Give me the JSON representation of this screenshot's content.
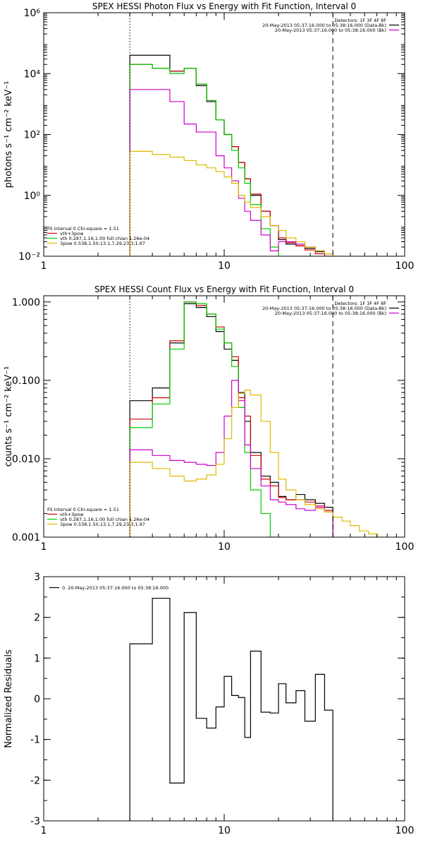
{
  "chart_data": [
    {
      "type": "line",
      "title": "SPEX HESSI Photon Flux vs Energy with Fit Function, Interval 0",
      "ylabel": "photons s⁻¹ cm⁻² keV⁻¹",
      "xlabel": "",
      "xscale": "log",
      "yscale": "log",
      "xlim": [
        1,
        100
      ],
      "ylim": [
        0.01,
        1000000
      ],
      "xticks": [
        {
          "v": 1,
          "label": "1"
        },
        {
          "v": 10,
          "label": "10"
        },
        {
          "v": 100,
          "label": "100"
        }
      ],
      "yticks": [
        {
          "v": 1000000,
          "label": "10⁶"
        },
        {
          "v": 10000,
          "label": "10⁴"
        },
        {
          "v": 100,
          "label": "10²"
        },
        {
          "v": 1,
          "label": "10⁰"
        },
        {
          "v": 0.01,
          "label": "10⁻²"
        }
      ],
      "vlines": [
        {
          "x": 3,
          "style": "dotted"
        },
        {
          "x": 40,
          "style": "dashed"
        }
      ],
      "legend_tr": {
        "title": "Detectors: 1F 3F 4F 8F",
        "entries": [
          {
            "label": "20-May-2013 05:37:16.000 to 05:38:16.000 (Data-Bk)",
            "color": "#000000"
          },
          {
            "label": "20-May-2013 05:37:16.000 to 05:38:16.000 (Bk)",
            "color": "#cc00cc"
          }
        ]
      },
      "legend_bl": {
        "title": "Fit Interval 0   Chi-square = 1.51",
        "entries": [
          {
            "label": "vth+3pow",
            "color": "#cc0000"
          },
          {
            "label": "vth 0.287,1.16,1.00  full chian 1.26e-04",
            "color": "#00cc00"
          },
          {
            "label": "3pow 0.538,1.50,13.1,7.29,23.3,1.97",
            "color": "#ddbb00"
          }
        ]
      },
      "series": [
        {
          "color": "#000000",
          "edges": [
            3,
            4,
            5,
            6,
            7,
            8,
            9,
            10,
            11,
            12,
            13,
            14,
            16,
            18,
            20,
            22,
            25,
            28,
            32,
            36,
            40
          ],
          "values": [
            40000,
            40000,
            12000,
            15000,
            4000,
            1200,
            300,
            100,
            40,
            12,
            3.5,
            1.0,
            0.3,
            0.1,
            0.035,
            0.025,
            0.022,
            0.018,
            0.014,
            0.012
          ]
        },
        {
          "color": "#cc0000",
          "edges": [
            3,
            4,
            5,
            6,
            7,
            8,
            9,
            10,
            11,
            12,
            13,
            14,
            16,
            18,
            20,
            22,
            25,
            28,
            32,
            36,
            40
          ],
          "values": [
            20000,
            15000,
            12000,
            15000,
            4500,
            1300,
            300,
            100,
            40,
            12,
            3.5,
            1.1,
            0.3,
            0.1,
            0.04,
            0.028,
            0.022,
            0.016,
            0.012,
            0.01
          ]
        },
        {
          "color": "#00cc00",
          "edges": [
            3,
            4,
            5,
            6,
            7,
            8,
            9,
            10,
            11,
            12,
            13,
            14,
            16,
            18,
            20,
            22
          ],
          "values": [
            20000,
            15000,
            10000,
            15000,
            4500,
            1300,
            300,
            100,
            30,
            8,
            2.5,
            0.5,
            0.08,
            0.02,
            0.008
          ]
        },
        {
          "color": "#cc00cc",
          "edges": [
            3,
            4,
            5,
            6,
            7,
            8,
            9,
            10,
            11,
            12,
            13,
            14,
            16,
            18,
            20,
            22,
            25,
            28,
            32,
            36,
            40
          ],
          "values": [
            3000,
            3000,
            1200,
            220,
            120,
            120,
            20,
            8,
            3,
            0.8,
            0.3,
            0.15,
            0.05,
            0.015,
            0.03,
            0.03,
            0.025,
            0.02,
            0.015,
            0.012
          ]
        },
        {
          "color": "#ddbb00",
          "edges": [
            3,
            4,
            5,
            6,
            7,
            8,
            9,
            10,
            11,
            12,
            13,
            14,
            16,
            18,
            20,
            22,
            25,
            28,
            32,
            36,
            40,
            45,
            50,
            56
          ],
          "values": [
            28,
            22,
            18,
            14,
            10,
            8,
            6,
            4,
            2.5,
            1.0,
            0.6,
            0.4,
            0.2,
            0.1,
            0.07,
            0.04,
            0.03,
            0.02,
            0.015,
            0.012,
            0.01,
            0.008,
            0.006
          ]
        }
      ]
    },
    {
      "type": "line",
      "title": "SPEX HESSI Count Flux vs Energy with Fit Function, Interval 0",
      "ylabel": "counts s⁻¹ cm⁻² keV⁻¹",
      "xlabel": "",
      "xscale": "log",
      "yscale": "log",
      "xlim": [
        1,
        100
      ],
      "ylim": [
        0.001,
        1.2
      ],
      "xticks": [
        {
          "v": 1,
          "label": "1"
        },
        {
          "v": 10,
          "label": "10"
        },
        {
          "v": 100,
          "label": "100"
        }
      ],
      "yticks": [
        {
          "v": 1.0,
          "label": "1.000"
        },
        {
          "v": 0.1,
          "label": "0.100"
        },
        {
          "v": 0.01,
          "label": "0.010"
        },
        {
          "v": 0.001,
          "label": "0.001"
        }
      ],
      "vlines": [
        {
          "x": 3,
          "style": "dotted"
        },
        {
          "x": 40,
          "style": "dashed"
        }
      ],
      "legend_tr": {
        "title": "Detectors: 1F 3F 4F 8F",
        "entries": [
          {
            "label": "20-May-2013 05:37:16.000 to 05:38:16.000 (Data-Bk)",
            "color": "#000000"
          },
          {
            "label": "20-May-2013 05:37:16.000 to 05:38:16.000 (Bk)",
            "color": "#cc00cc"
          }
        ]
      },
      "legend_bl": {
        "title": "Fit Interval 0   Chi-square = 1.51",
        "entries": [
          {
            "label": "vth+3pow",
            "color": "#cc0000"
          },
          {
            "label": "vth 0.287,1.16,1.00  full chian 1.26e-04",
            "color": "#00cc00"
          },
          {
            "label": "3pow 0.538,1.50,13.1,7.29,23.3,1.97",
            "color": "#ddbb00"
          }
        ]
      },
      "series": [
        {
          "color": "#000000",
          "edges": [
            3,
            4,
            5,
            6,
            7,
            8,
            9,
            10,
            11,
            12,
            13,
            14,
            16,
            18,
            20,
            22,
            25,
            28,
            32,
            36,
            40
          ],
          "values": [
            0.055,
            0.08,
            0.3,
            0.95,
            0.85,
            0.65,
            0.42,
            0.25,
            0.18,
            0.07,
            0.03,
            0.012,
            0.006,
            0.005,
            0.0033,
            0.003,
            0.0035,
            0.003,
            0.0027,
            0.0024
          ]
        },
        {
          "color": "#cc0000",
          "edges": [
            3,
            4,
            5,
            6,
            7,
            8,
            9,
            10,
            11,
            12,
            13,
            14,
            16,
            18,
            20,
            22,
            25,
            28,
            32,
            36,
            40
          ],
          "values": [
            0.032,
            0.06,
            0.32,
            1.0,
            0.9,
            0.7,
            0.48,
            0.3,
            0.2,
            0.06,
            0.035,
            0.011,
            0.0055,
            0.0045,
            0.0032,
            0.003,
            0.003,
            0.0028,
            0.0025,
            0.0022
          ]
        },
        {
          "color": "#00cc00",
          "edges": [
            3,
            4,
            5,
            6,
            7,
            8,
            9,
            10,
            11,
            12,
            13,
            14,
            16,
            18,
            20
          ],
          "values": [
            0.025,
            0.05,
            0.25,
            1.0,
            0.95,
            0.7,
            0.45,
            0.3,
            0.15,
            0.045,
            0.012,
            0.004,
            0.002,
            0.001
          ]
        },
        {
          "color": "#cc00cc",
          "edges": [
            3,
            4,
            5,
            6,
            7,
            8,
            9,
            10,
            11,
            12,
            13,
            14,
            16,
            18,
            20,
            22,
            25,
            28,
            32,
            36,
            40
          ],
          "values": [
            0.013,
            0.011,
            0.0095,
            0.009,
            0.0085,
            0.0082,
            0.012,
            0.035,
            0.1,
            0.055,
            0.015,
            0.0075,
            0.0045,
            0.003,
            0.0028,
            0.0026,
            0.0023,
            0.0022,
            0.0024,
            0.0021
          ]
        },
        {
          "color": "#ddbb00",
          "edges": [
            3,
            4,
            5,
            6,
            7,
            8,
            9,
            10,
            11,
            12,
            13,
            14,
            16,
            18,
            20,
            22,
            25,
            28,
            32,
            36,
            40,
            45,
            50,
            56,
            63,
            71,
            79
          ],
          "values": [
            0.009,
            0.0075,
            0.006,
            0.0052,
            0.0055,
            0.0062,
            0.0085,
            0.018,
            0.045,
            0.068,
            0.075,
            0.065,
            0.03,
            0.012,
            0.0055,
            0.004,
            0.003,
            0.0026,
            0.0023,
            0.0021,
            0.0018,
            0.0016,
            0.0014,
            0.0012,
            0.0011,
            0.001
          ]
        }
      ]
    },
    {
      "type": "line",
      "title": "",
      "ylabel": "Normalized Residuals",
      "xlabel": "",
      "xscale": "log",
      "yscale": "linear",
      "xlim": [
        1,
        100
      ],
      "ylim": [
        -3,
        3
      ],
      "xticks": [
        {
          "v": 1,
          "label": "1"
        },
        {
          "v": 10,
          "label": "10"
        },
        {
          "v": 100,
          "label": "100"
        }
      ],
      "yticks": [
        {
          "v": 3,
          "label": "3"
        },
        {
          "v": 2,
          "label": "2"
        },
        {
          "v": 1,
          "label": "1"
        },
        {
          "v": 0,
          "label": "0"
        },
        {
          "v": -1,
          "label": "-1"
        },
        {
          "v": -2,
          "label": "-2"
        },
        {
          "v": -3,
          "label": "-3"
        }
      ],
      "vlines": [],
      "legend_tl": {
        "entries": [
          {
            "label": "0. 20-May-2013 05:37:16.000 to 05:38:16.000",
            "color": "#000000"
          }
        ]
      },
      "series": [
        {
          "color": "#000000",
          "edges": [
            3,
            4,
            5,
            6,
            7,
            8,
            9,
            10,
            11,
            12,
            13,
            14,
            16,
            18,
            20,
            22,
            25,
            28,
            32,
            36,
            40
          ],
          "values": [
            1.35,
            2.47,
            -2.07,
            2.12,
            -0.48,
            -0.72,
            -0.2,
            0.55,
            0.08,
            0.03,
            -0.95,
            1.17,
            -0.33,
            -0.35,
            0.37,
            -0.1,
            0.2,
            -0.55,
            0.6,
            -0.28
          ]
        }
      ]
    }
  ]
}
